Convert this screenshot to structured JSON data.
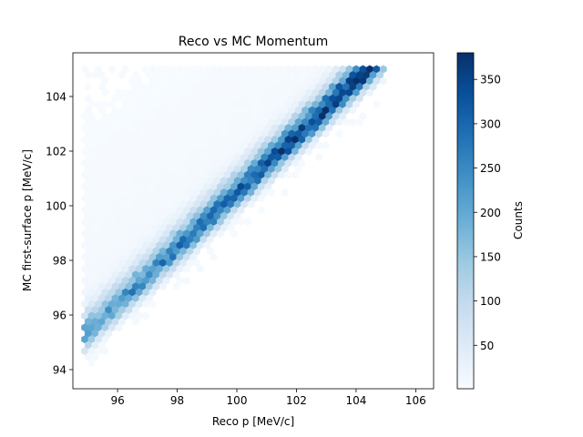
{
  "chart_data": {
    "type": "heatmap",
    "subtype": "hexbin",
    "title": "Reco vs MC Momentum",
    "xlabel": "Reco p [MeV/c]",
    "ylabel": "MC first-surface p [MeV/c]",
    "xlim": [
      94.5,
      106.6
    ],
    "ylim": [
      93.3,
      105.6
    ],
    "x_ticks": [
      96,
      98,
      100,
      102,
      104,
      106
    ],
    "y_ticks": [
      94,
      96,
      98,
      100,
      102,
      104
    ],
    "x_tick_labels": [
      "96",
      "98",
      "100",
      "102",
      "104",
      "106"
    ],
    "y_tick_labels": [
      "94",
      "96",
      "98",
      "100",
      "102",
      "104"
    ],
    "colorbar": {
      "label": "Counts",
      "colormap": "Blues",
      "min": 1,
      "max": 380,
      "ticks": [
        50,
        100,
        150,
        200,
        250,
        300,
        350
      ],
      "tick_labels": [
        "50",
        "100",
        "150",
        "200",
        "250",
        "300",
        "350"
      ]
    },
    "distribution": {
      "description_free": true,
      "ridge": {
        "x_start": 95.3,
        "y_start": 95.6,
        "x_end": 104.3,
        "y_end": 104.8
      },
      "x_range": [
        94.9,
        105.0
      ],
      "y_range": [
        93.8,
        105.0
      ],
      "peak_counts_low_end": 200,
      "peak_counts_high_end": 380
    },
    "grid": false,
    "legend": "none"
  }
}
